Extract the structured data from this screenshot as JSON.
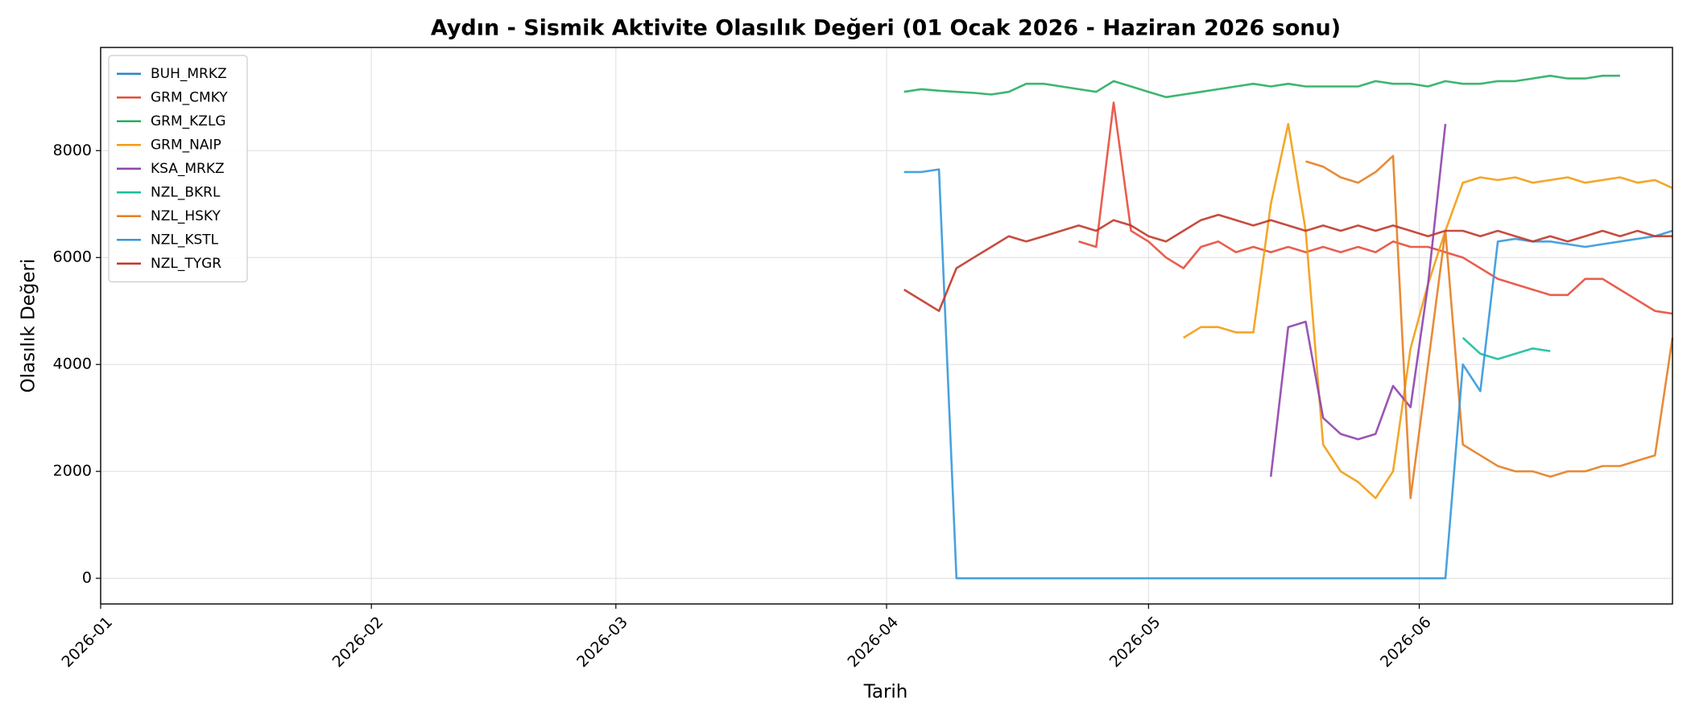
{
  "chart_data": {
    "type": "line",
    "title": "Aydın - Sismik Aktivite Olasılık Değeri (01 Ocak 2026 - Haziran 2026 sonu)",
    "x_label": "Tarih",
    "y_label": "Olasılık Değeri",
    "xlim": [
      "2026-01-01",
      "2026-06-30"
    ],
    "xticks": [
      "2026-01",
      "2026-02",
      "2026-03",
      "2026-04",
      "2026-05",
      "2026-06"
    ],
    "ylim": [
      -480,
      9930
    ],
    "yticks": [
      0,
      2000,
      4000,
      6000,
      8000
    ],
    "grid": true,
    "legend": "upper left",
    "x": [
      "2026-04-03",
      "2026-04-05",
      "2026-04-07",
      "2026-04-09",
      "2026-04-11",
      "2026-04-13",
      "2026-04-15",
      "2026-04-17",
      "2026-04-19",
      "2026-04-21",
      "2026-04-23",
      "2026-04-25",
      "2026-04-27",
      "2026-04-29",
      "2026-05-01",
      "2026-05-03",
      "2026-05-05",
      "2026-05-07",
      "2026-05-09",
      "2026-05-11",
      "2026-05-13",
      "2026-05-15",
      "2026-05-17",
      "2026-05-19",
      "2026-05-21",
      "2026-05-23",
      "2026-05-25",
      "2026-05-27",
      "2026-05-29",
      "2026-05-31",
      "2026-06-02",
      "2026-06-04",
      "2026-06-06",
      "2026-06-08",
      "2026-06-10",
      "2026-06-12",
      "2026-06-14",
      "2026-06-16",
      "2026-06-18",
      "2026-06-20",
      "2026-06-22",
      "2026-06-24",
      "2026-06-26",
      "2026-06-28",
      "2026-06-30"
    ],
    "series": [
      {
        "name": "BUH_MRKZ",
        "color": "#2e86c1",
        "values": [
          null,
          null,
          null,
          null,
          null,
          null,
          null,
          null,
          null,
          null,
          null,
          null,
          null,
          null,
          null,
          null,
          null,
          null,
          null,
          null,
          null,
          null,
          null,
          null,
          null,
          null,
          null,
          null,
          null,
          null,
          null,
          null,
          null,
          null,
          null,
          null,
          null,
          null,
          null,
          null,
          null,
          null,
          null,
          null,
          null
        ]
      },
      {
        "name": "GRM_CMKY",
        "color": "#e74c3c",
        "values": [
          null,
          null,
          null,
          null,
          null,
          null,
          null,
          null,
          null,
          null,
          6300,
          6200,
          8900,
          6500,
          6300,
          6000,
          5800,
          6200,
          6300,
          6100,
          6200,
          6100,
          6200,
          6100,
          6200,
          6100,
          6200,
          6100,
          6300,
          6200,
          6200,
          6100,
          6000,
          5800,
          5600,
          5500,
          5400,
          5300,
          5300,
          5600,
          5600,
          5400,
          5200,
          5000,
          4950
        ]
      },
      {
        "name": "GRM_KZLG",
        "color": "#27ae60",
        "values": [
          9100,
          9150,
          9120,
          9100,
          9080,
          9050,
          9100,
          9250,
          9250,
          9200,
          9150,
          9100,
          9300,
          9200,
          9100,
          9000,
          9050,
          9100,
          9150,
          9200,
          9250,
          9200,
          9250,
          9200,
          9200,
          9200,
          9200,
          9300,
          9250,
          9250,
          9200,
          9300,
          9250,
          9250,
          9300,
          9300,
          9350,
          9400,
          9350,
          9350,
          9400,
          9400,
          null,
          null,
          null
        ]
      },
      {
        "name": "GRM_NAIP",
        "color": "#f39c12",
        "values": [
          null,
          null,
          null,
          null,
          null,
          null,
          null,
          null,
          null,
          null,
          null,
          null,
          null,
          null,
          null,
          null,
          4500,
          4700,
          4700,
          4600,
          4600,
          7000,
          8500,
          6500,
          2500,
          2000,
          1800,
          1500,
          2000,
          4300,
          5500,
          6500,
          7400,
          7500,
          7450,
          7500,
          7400,
          7450,
          7500,
          7400,
          7450,
          7500,
          7400,
          7450,
          7300
        ]
      },
      {
        "name": "KSA_MRKZ",
        "color": "#8e44ad",
        "values": [
          null,
          null,
          null,
          null,
          null,
          null,
          null,
          null,
          null,
          null,
          null,
          null,
          null,
          null,
          null,
          null,
          null,
          null,
          null,
          null,
          null,
          1900,
          4700,
          4800,
          3000,
          2700,
          2600,
          2700,
          3600,
          3200,
          5500,
          8500,
          null,
          null,
          null,
          null,
          null,
          null,
          null,
          null,
          null,
          null,
          null,
          null,
          null
        ]
      },
      {
        "name": "NZL_BKRL",
        "color": "#1abc9c",
        "values": [
          null,
          null,
          null,
          null,
          null,
          null,
          null,
          null,
          null,
          null,
          null,
          null,
          null,
          null,
          null,
          null,
          null,
          null,
          null,
          null,
          null,
          null,
          null,
          null,
          null,
          null,
          null,
          null,
          null,
          null,
          null,
          null,
          4500,
          4200,
          4100,
          4200,
          4300,
          4250,
          null,
          null,
          null,
          null,
          null,
          null,
          null
        ]
      },
      {
        "name": "NZL_HSKY",
        "color": "#e67e22",
        "values": [
          null,
          null,
          null,
          null,
          null,
          null,
          null,
          null,
          null,
          null,
          null,
          null,
          null,
          null,
          null,
          null,
          null,
          null,
          null,
          null,
          null,
          null,
          null,
          7800,
          7700,
          7500,
          7400,
          7600,
          7900,
          1500,
          4000,
          6500,
          2500,
          2300,
          2100,
          2000,
          2000,
          1900,
          2000,
          2000,
          2100,
          2100,
          2200,
          2300,
          4500
        ]
      },
      {
        "name": "NZL_KSTL",
        "color": "#3498db",
        "values": [
          7600,
          7600,
          7650,
          0,
          0,
          0,
          0,
          0,
          0,
          0,
          0,
          0,
          0,
          0,
          0,
          0,
          0,
          0,
          0,
          0,
          0,
          0,
          0,
          0,
          0,
          0,
          0,
          0,
          0,
          0,
          0,
          0,
          4000,
          3500,
          6300,
          6350,
          6300,
          6300,
          6250,
          6200,
          6250,
          6300,
          6350,
          6400,
          6500
        ]
      },
      {
        "name": "NZL_TYGR",
        "color": "#c0392b",
        "values": [
          5400,
          5200,
          5000,
          5800,
          6000,
          6200,
          6400,
          6300,
          6400,
          6500,
          6600,
          6500,
          6700,
          6600,
          6400,
          6300,
          6500,
          6700,
          6800,
          6700,
          6600,
          6700,
          6600,
          6500,
          6600,
          6500,
          6600,
          6500,
          6600,
          6500,
          6400,
          6500,
          6500,
          6400,
          6500,
          6400,
          6300,
          6400,
          6300,
          6400,
          6500,
          6400,
          6500,
          6400,
          6400
        ]
      }
    ]
  }
}
